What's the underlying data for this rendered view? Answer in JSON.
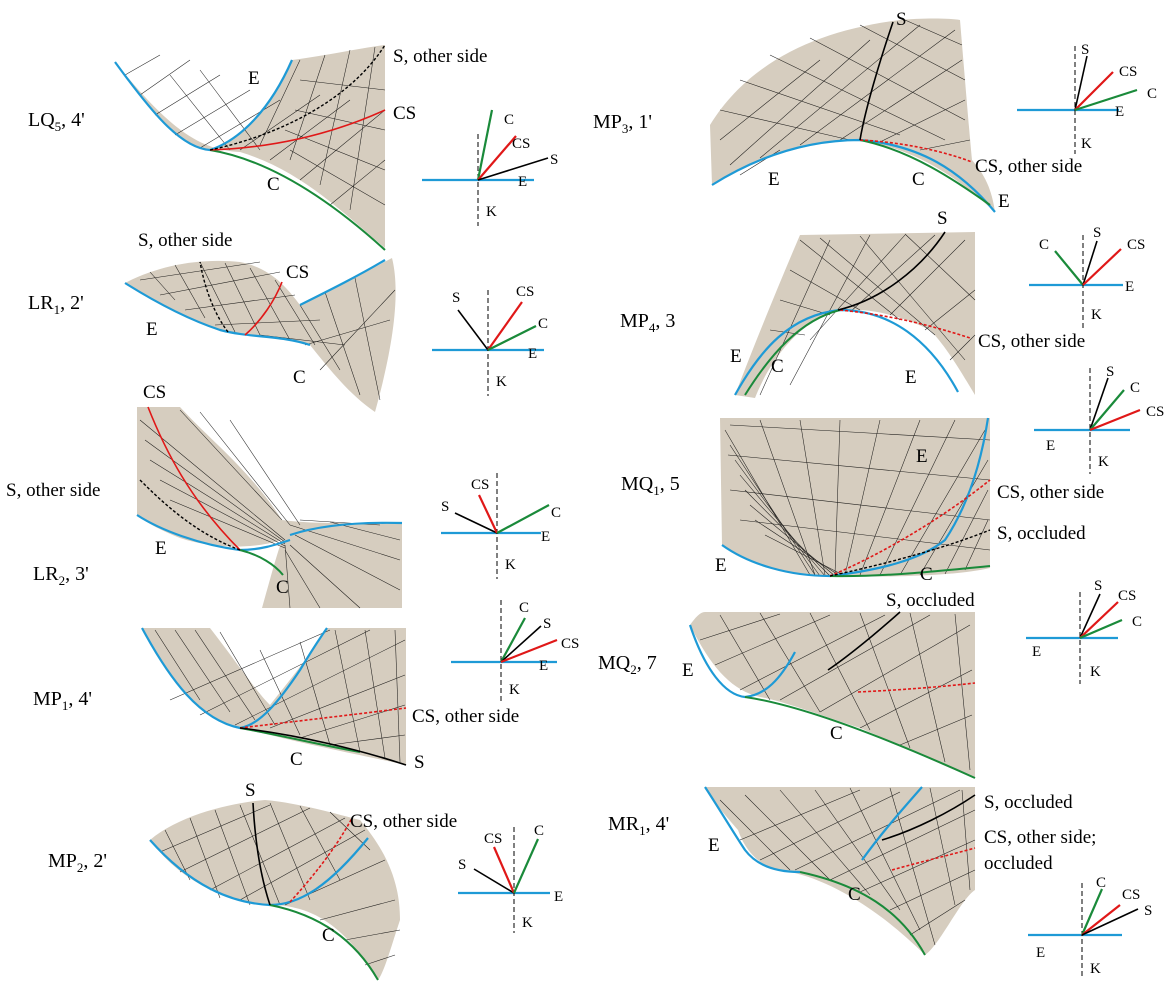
{
  "panels": [
    {
      "id": "lq5",
      "title_main": "LQ",
      "title_sub": "5",
      "title_rest": ", 4'",
      "labels": {
        "E": "E",
        "C": "C",
        "CS": "CS",
        "S": "S, other side"
      },
      "mini": {
        "C": "C",
        "CS": "CS",
        "S": "S",
        "E": "E",
        "K": "K"
      }
    },
    {
      "id": "lr1",
      "title_main": "LR",
      "title_sub": "1",
      "title_rest": ", 2'",
      "labels": {
        "E": "E",
        "C": "C",
        "CS": "CS",
        "S": "S, other side"
      },
      "mini": {
        "C": "C",
        "CS": "CS",
        "S": "S",
        "E": "E",
        "K": "K"
      }
    },
    {
      "id": "lr2",
      "title_main": "LR",
      "title_sub": "2",
      "title_rest": ", 3'",
      "labels": {
        "E": "E",
        "C": "C",
        "CS": "CS",
        "S": "S, other side"
      },
      "mini": {
        "C": "C",
        "CS": "CS",
        "S": "S",
        "E": "E",
        "K": "K"
      }
    },
    {
      "id": "mp1",
      "title_main": "MP",
      "title_sub": "1",
      "title_rest": ", 4'",
      "labels": {
        "C": "C",
        "CS": "CS, other side",
        "S": "S"
      },
      "mini": {
        "C": "C",
        "CS": "CS",
        "S": "S",
        "E": "E",
        "K": "K"
      }
    },
    {
      "id": "mp2",
      "title_main": "MP",
      "title_sub": "2",
      "title_rest": ", 2'",
      "labels": {
        "S": "S",
        "C": "C",
        "CS": "CS, other side"
      },
      "mini": {
        "C": "C",
        "CS": "CS",
        "S": "S",
        "E": "E",
        "K": "K"
      }
    },
    {
      "id": "mp3",
      "title_main": "MP",
      "title_sub": "3",
      "title_rest": ", 1'",
      "labels": {
        "S": "S",
        "E": "E",
        "C": "C",
        "E2": "E",
        "CS": "CS, other side"
      },
      "mini": {
        "C": "C",
        "CS": "CS",
        "S": "S",
        "E": "E",
        "K": "K"
      }
    },
    {
      "id": "mp4",
      "title_main": "MP",
      "title_sub": "4",
      "title_rest": ", 3",
      "labels": {
        "S": "S",
        "E": "E",
        "C": "C",
        "E2": "E",
        "CS": "CS, other side"
      },
      "mini": {
        "C": "C",
        "CS": "CS",
        "S": "S",
        "E": "E",
        "K": "K"
      }
    },
    {
      "id": "mq1",
      "title_main": "MQ",
      "title_sub": "1",
      "title_rest": ", 5",
      "labels": {
        "E": "E",
        "E2": "E",
        "C": "C",
        "CS": "CS, other side",
        "S": "S, occluded"
      },
      "mini": {
        "C": "C",
        "CS": "CS",
        "S": "S",
        "E": "E",
        "K": "K"
      }
    },
    {
      "id": "mq2",
      "title_main": "MQ",
      "title_sub": "2",
      "title_rest": ", 7",
      "labels": {
        "E": "E",
        "C": "C",
        "S": "S, occluded"
      },
      "mini": {
        "C": "C",
        "CS": "CS",
        "S": "S",
        "E": "E",
        "K": "K"
      }
    },
    {
      "id": "mr1",
      "title_main": "MR",
      "title_sub": "1",
      "title_rest": ", 4'",
      "labels": {
        "E": "E",
        "C": "C",
        "S": "S, occluded",
        "CS1": "CS, other side;",
        "CS2": "occluded"
      },
      "mini": {
        "C": "C",
        "CS": "CS",
        "S": "S",
        "E": "E",
        "K": "K"
      }
    }
  ],
  "colors": {
    "surface": "#d6cdbf",
    "edge": "#1e9ad6",
    "contour": "#1a8a3a",
    "cusp": "#e01818",
    "singular": "#000000"
  }
}
